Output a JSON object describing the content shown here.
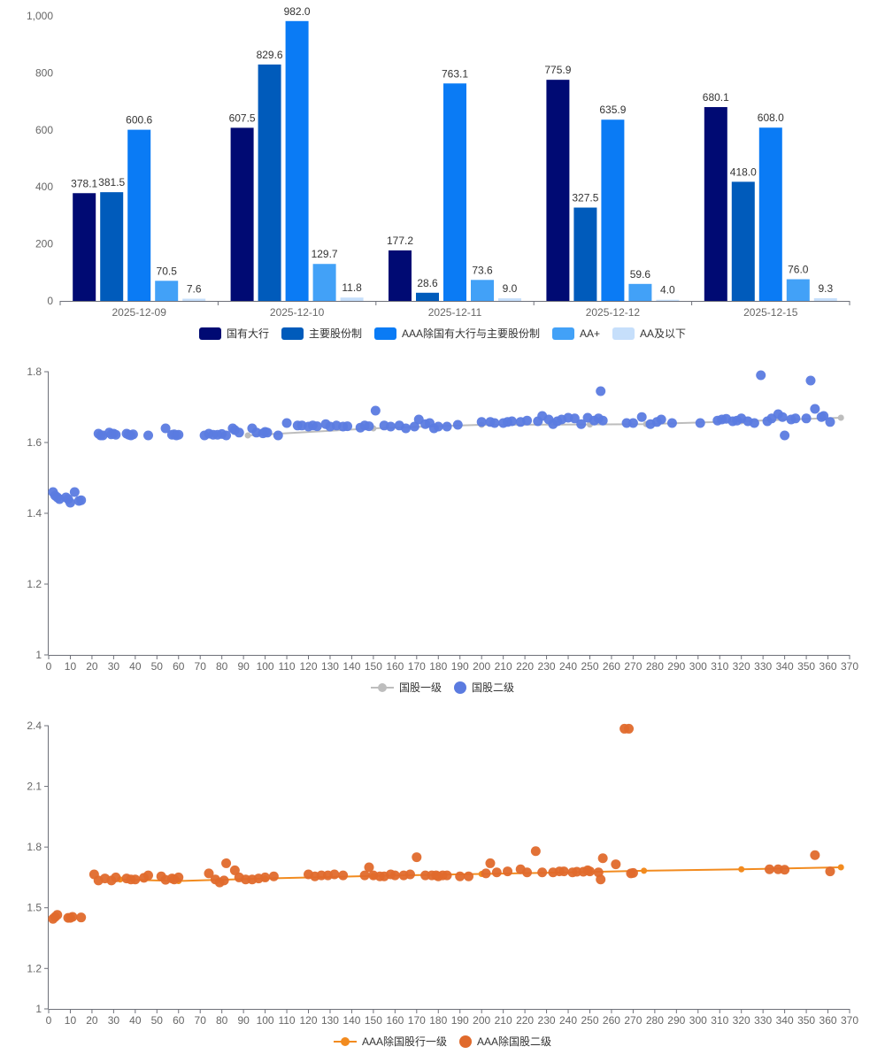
{
  "chart_data": [
    {
      "type": "bar",
      "categories": [
        "2025-12-09",
        "2025-12-10",
        "2025-12-11",
        "2025-12-12",
        "2025-12-15"
      ],
      "series": [
        {
          "name": "国有大行",
          "color": "#000A73",
          "values": [
            378.1,
            607.5,
            177.2,
            775.9,
            680.1
          ],
          "labels": [
            "378.1",
            "607.5",
            "177.2",
            "775.9",
            "680.1"
          ]
        },
        {
          "name": "主要股份制",
          "color": "#005BBB",
          "values": [
            381.5,
            829.6,
            28.6,
            327.5,
            418.0
          ],
          "labels": [
            "381.5",
            "829.6",
            "28.6",
            "327.5",
            "418.0"
          ]
        },
        {
          "name": "AAA除国有大行与主要股份制",
          "color": "#0A7BF5",
          "values": [
            600.6,
            982.0,
            763.1,
            635.9,
            608.0
          ],
          "labels": [
            "600.6",
            "982.0",
            "763.1",
            "635.9",
            "608.0"
          ]
        },
        {
          "name": "AA+",
          "color": "#42A1F7",
          "values": [
            70.5,
            129.7,
            73.6,
            59.6,
            76.0
          ],
          "labels": [
            "70.5",
            "129.7",
            "73.6",
            "59.6",
            "76.0"
          ]
        },
        {
          "name": "AA及以下",
          "color": "#C6DFFB",
          "values": [
            7.6,
            11.8,
            9.0,
            4.0,
            9.3
          ],
          "labels": [
            "7.6",
            "11.8",
            "9.0",
            "4.0",
            "9.3"
          ]
        }
      ],
      "ylim": [
        0,
        1000
      ],
      "yticks": [
        "0",
        "200",
        "400",
        "600",
        "800",
        "1,000"
      ],
      "ytick_values": [
        0,
        200,
        400,
        600,
        800,
        1000
      ],
      "legend_position": "bottom",
      "grid": false
    },
    {
      "type": "scatter",
      "xlim": [
        0,
        370
      ],
      "ylim": [
        1,
        1.8
      ],
      "xticks": [
        "0",
        "10",
        "20",
        "30",
        "40",
        "50",
        "60",
        "70",
        "80",
        "90",
        "100",
        "110",
        "120",
        "130",
        "140",
        "150",
        "160",
        "170",
        "180",
        "190",
        "200",
        "210",
        "220",
        "230",
        "240",
        "250",
        "260",
        "270",
        "280",
        "290",
        "300",
        "310",
        "320",
        "330",
        "340",
        "350",
        "360",
        "370"
      ],
      "yticks": [
        "1",
        "1.2",
        "1.4",
        "1.6",
        "1.8"
      ],
      "ytick_values": [
        1,
        1.2,
        1.4,
        1.6,
        1.8
      ],
      "legend_position": "bottom",
      "grid": false,
      "series": [
        {
          "name": "国股一级",
          "kind": "line",
          "color": "#BDBDBD",
          "points": [
            [
              92,
              1.62
            ],
            [
              150,
              1.64
            ],
            [
              200,
              1.65
            ],
            [
              250,
              1.651
            ],
            [
              276,
              1.652
            ],
            [
              320,
              1.66
            ],
            [
              366,
              1.67
            ]
          ]
        },
        {
          "name": "国股二级",
          "kind": "scatter",
          "color": "#5B7BE0",
          "points": [
            [
              2,
              1.46
            ],
            [
              3,
              1.45
            ],
            [
              4,
              1.445
            ],
            [
              5,
              1.44
            ],
            [
              8,
              1.445
            ],
            [
              9,
              1.44
            ],
            [
              10,
              1.43
            ],
            [
              12,
              1.46
            ],
            [
              14,
              1.435
            ],
            [
              15,
              1.437
            ],
            [
              23,
              1.625
            ],
            [
              24,
              1.62
            ],
            [
              25,
              1.62
            ],
            [
              28,
              1.628
            ],
            [
              29,
              1.623
            ],
            [
              30,
              1.625
            ],
            [
              31,
              1.622
            ],
            [
              36,
              1.625
            ],
            [
              37,
              1.622
            ],
            [
              38,
              1.62
            ],
            [
              39,
              1.623
            ],
            [
              46,
              1.62
            ],
            [
              54,
              1.64
            ],
            [
              57,
              1.622
            ],
            [
              58,
              1.623
            ],
            [
              59,
              1.62
            ],
            [
              60,
              1.622
            ],
            [
              72,
              1.62
            ],
            [
              74,
              1.625
            ],
            [
              76,
              1.622
            ],
            [
              78,
              1.622
            ],
            [
              80,
              1.624
            ],
            [
              82,
              1.62
            ],
            [
              85,
              1.64
            ],
            [
              86,
              1.635
            ],
            [
              88,
              1.628
            ],
            [
              94,
              1.64
            ],
            [
              96,
              1.628
            ],
            [
              99,
              1.626
            ],
            [
              100,
              1.63
            ],
            [
              101,
              1.628
            ],
            [
              106,
              1.62
            ],
            [
              110,
              1.655
            ],
            [
              115,
              1.648
            ],
            [
              117,
              1.648
            ],
            [
              120,
              1.645
            ],
            [
              122,
              1.648
            ],
            [
              124,
              1.646
            ],
            [
              128,
              1.652
            ],
            [
              130,
              1.645
            ],
            [
              133,
              1.648
            ],
            [
              136,
              1.645
            ],
            [
              138,
              1.646
            ],
            [
              144,
              1.642
            ],
            [
              146,
              1.648
            ],
            [
              148,
              1.646
            ],
            [
              151,
              1.69
            ],
            [
              155,
              1.648
            ],
            [
              158,
              1.645
            ],
            [
              162,
              1.648
            ],
            [
              165,
              1.64
            ],
            [
              169,
              1.645
            ],
            [
              171,
              1.665
            ],
            [
              174,
              1.652
            ],
            [
              176,
              1.655
            ],
            [
              178,
              1.64
            ],
            [
              180,
              1.645
            ],
            [
              184,
              1.645
            ],
            [
              189,
              1.65
            ],
            [
              200,
              1.658
            ],
            [
              204,
              1.658
            ],
            [
              206,
              1.655
            ],
            [
              210,
              1.655
            ],
            [
              212,
              1.658
            ],
            [
              214,
              1.66
            ],
            [
              218,
              1.658
            ],
            [
              221,
              1.662
            ],
            [
              226,
              1.66
            ],
            [
              228,
              1.675
            ],
            [
              231,
              1.665
            ],
            [
              233,
              1.652
            ],
            [
              235,
              1.66
            ],
            [
              237,
              1.665
            ],
            [
              240,
              1.67
            ],
            [
              243,
              1.668
            ],
            [
              246,
              1.652
            ],
            [
              249,
              1.67
            ],
            [
              252,
              1.662
            ],
            [
              254,
              1.668
            ],
            [
              255,
              1.745
            ],
            [
              256,
              1.662
            ],
            [
              267,
              1.655
            ],
            [
              270,
              1.655
            ],
            [
              274,
              1.672
            ],
            [
              278,
              1.652
            ],
            [
              281,
              1.658
            ],
            [
              283,
              1.665
            ],
            [
              288,
              1.655
            ],
            [
              301,
              1.655
            ],
            [
              309,
              1.662
            ],
            [
              311,
              1.665
            ],
            [
              313,
              1.667
            ],
            [
              316,
              1.66
            ],
            [
              318,
              1.662
            ],
            [
              320,
              1.668
            ],
            [
              323,
              1.66
            ],
            [
              326,
              1.655
            ],
            [
              329,
              1.79
            ],
            [
              332,
              1.66
            ],
            [
              334,
              1.668
            ],
            [
              337,
              1.68
            ],
            [
              339,
              1.672
            ],
            [
              340,
              1.62
            ],
            [
              343,
              1.665
            ],
            [
              345,
              1.668
            ],
            [
              350,
              1.668
            ],
            [
              352,
              1.775
            ],
            [
              354,
              1.695
            ],
            [
              357,
              1.672
            ],
            [
              358,
              1.675
            ],
            [
              361,
              1.658
            ]
          ]
        }
      ]
    },
    {
      "type": "scatter",
      "xlim": [
        0,
        370
      ],
      "ylim": [
        1,
        2.4
      ],
      "xticks": [
        "0",
        "10",
        "20",
        "30",
        "40",
        "50",
        "60",
        "70",
        "80",
        "90",
        "100",
        "110",
        "120",
        "130",
        "140",
        "150",
        "160",
        "170",
        "180",
        "190",
        "200",
        "210",
        "220",
        "230",
        "240",
        "250",
        "260",
        "270",
        "280",
        "290",
        "300",
        "310",
        "320",
        "330",
        "340",
        "350",
        "360",
        "370"
      ],
      "yticks": [
        "1",
        "1.2",
        "1.5",
        "1.8",
        "2.1",
        "2.4"
      ],
      "ytick_values": [
        1,
        1.2,
        1.5,
        1.8,
        2.1,
        2.4
      ],
      "legend_position": "bottom",
      "grid": false,
      "series": [
        {
          "name": "AAA除国股行一级",
          "kind": "line",
          "color": "#F28B1F",
          "points": [
            [
              33,
              1.64
            ],
            [
              60,
              1.632
            ],
            [
              100,
              1.645
            ],
            [
              150,
              1.657
            ],
            [
              200,
              1.667
            ],
            [
              250,
              1.677
            ],
            [
              275,
              1.683
            ],
            [
              320,
              1.69
            ],
            [
              366,
              1.7
            ]
          ]
        },
        {
          "name": "AAA除国股二级",
          "kind": "scatter",
          "color": "#E06A2C",
          "points": [
            [
              2,
              1.445
            ],
            [
              3,
              1.455
            ],
            [
              4,
              1.465
            ],
            [
              9,
              1.45
            ],
            [
              10,
              1.45
            ],
            [
              11,
              1.455
            ],
            [
              15,
              1.452
            ],
            [
              21,
              1.665
            ],
            [
              23,
              1.635
            ],
            [
              26,
              1.645
            ],
            [
              29,
              1.635
            ],
            [
              31,
              1.65
            ],
            [
              36,
              1.645
            ],
            [
              38,
              1.64
            ],
            [
              40,
              1.64
            ],
            [
              44,
              1.648
            ],
            [
              46,
              1.66
            ],
            [
              52,
              1.655
            ],
            [
              54,
              1.638
            ],
            [
              57,
              1.645
            ],
            [
              58,
              1.64
            ],
            [
              60,
              1.65
            ],
            [
              74,
              1.67
            ],
            [
              77,
              1.64
            ],
            [
              79,
              1.625
            ],
            [
              81,
              1.635
            ],
            [
              82,
              1.72
            ],
            [
              86,
              1.685
            ],
            [
              88,
              1.65
            ],
            [
              91,
              1.64
            ],
            [
              94,
              1.64
            ],
            [
              97,
              1.645
            ],
            [
              100,
              1.65
            ],
            [
              104,
              1.655
            ],
            [
              120,
              1.665
            ],
            [
              123,
              1.655
            ],
            [
              126,
              1.66
            ],
            [
              129,
              1.66
            ],
            [
              132,
              1.665
            ],
            [
              136,
              1.66
            ],
            [
              146,
              1.66
            ],
            [
              148,
              1.7
            ],
            [
              150,
              1.66
            ],
            [
              153,
              1.655
            ],
            [
              155,
              1.655
            ],
            [
              158,
              1.665
            ],
            [
              160,
              1.66
            ],
            [
              164,
              1.66
            ],
            [
              167,
              1.665
            ],
            [
              170,
              1.75
            ],
            [
              174,
              1.66
            ],
            [
              177,
              1.66
            ],
            [
              179,
              1.66
            ],
            [
              180,
              1.655
            ],
            [
              182,
              1.66
            ],
            [
              184,
              1.66
            ],
            [
              190,
              1.655
            ],
            [
              194,
              1.655
            ],
            [
              202,
              1.67
            ],
            [
              204,
              1.72
            ],
            [
              207,
              1.675
            ],
            [
              212,
              1.68
            ],
            [
              218,
              1.69
            ],
            [
              221,
              1.675
            ],
            [
              225,
              1.78
            ],
            [
              228,
              1.675
            ],
            [
              233,
              1.675
            ],
            [
              236,
              1.68
            ],
            [
              238,
              1.68
            ],
            [
              242,
              1.675
            ],
            [
              244,
              1.678
            ],
            [
              247,
              1.678
            ],
            [
              249,
              1.685
            ],
            [
              250,
              1.68
            ],
            [
              254,
              1.675
            ],
            [
              255,
              1.64
            ],
            [
              256,
              1.745
            ],
            [
              262,
              1.715
            ],
            [
              266,
              2.385
            ],
            [
              268,
              2.385
            ],
            [
              269,
              1.67
            ],
            [
              270,
              1.672
            ],
            [
              333,
              1.69
            ],
            [
              337,
              1.69
            ],
            [
              340,
              1.688
            ],
            [
              354,
              1.76
            ],
            [
              361,
              1.68
            ]
          ]
        }
      ]
    }
  ]
}
